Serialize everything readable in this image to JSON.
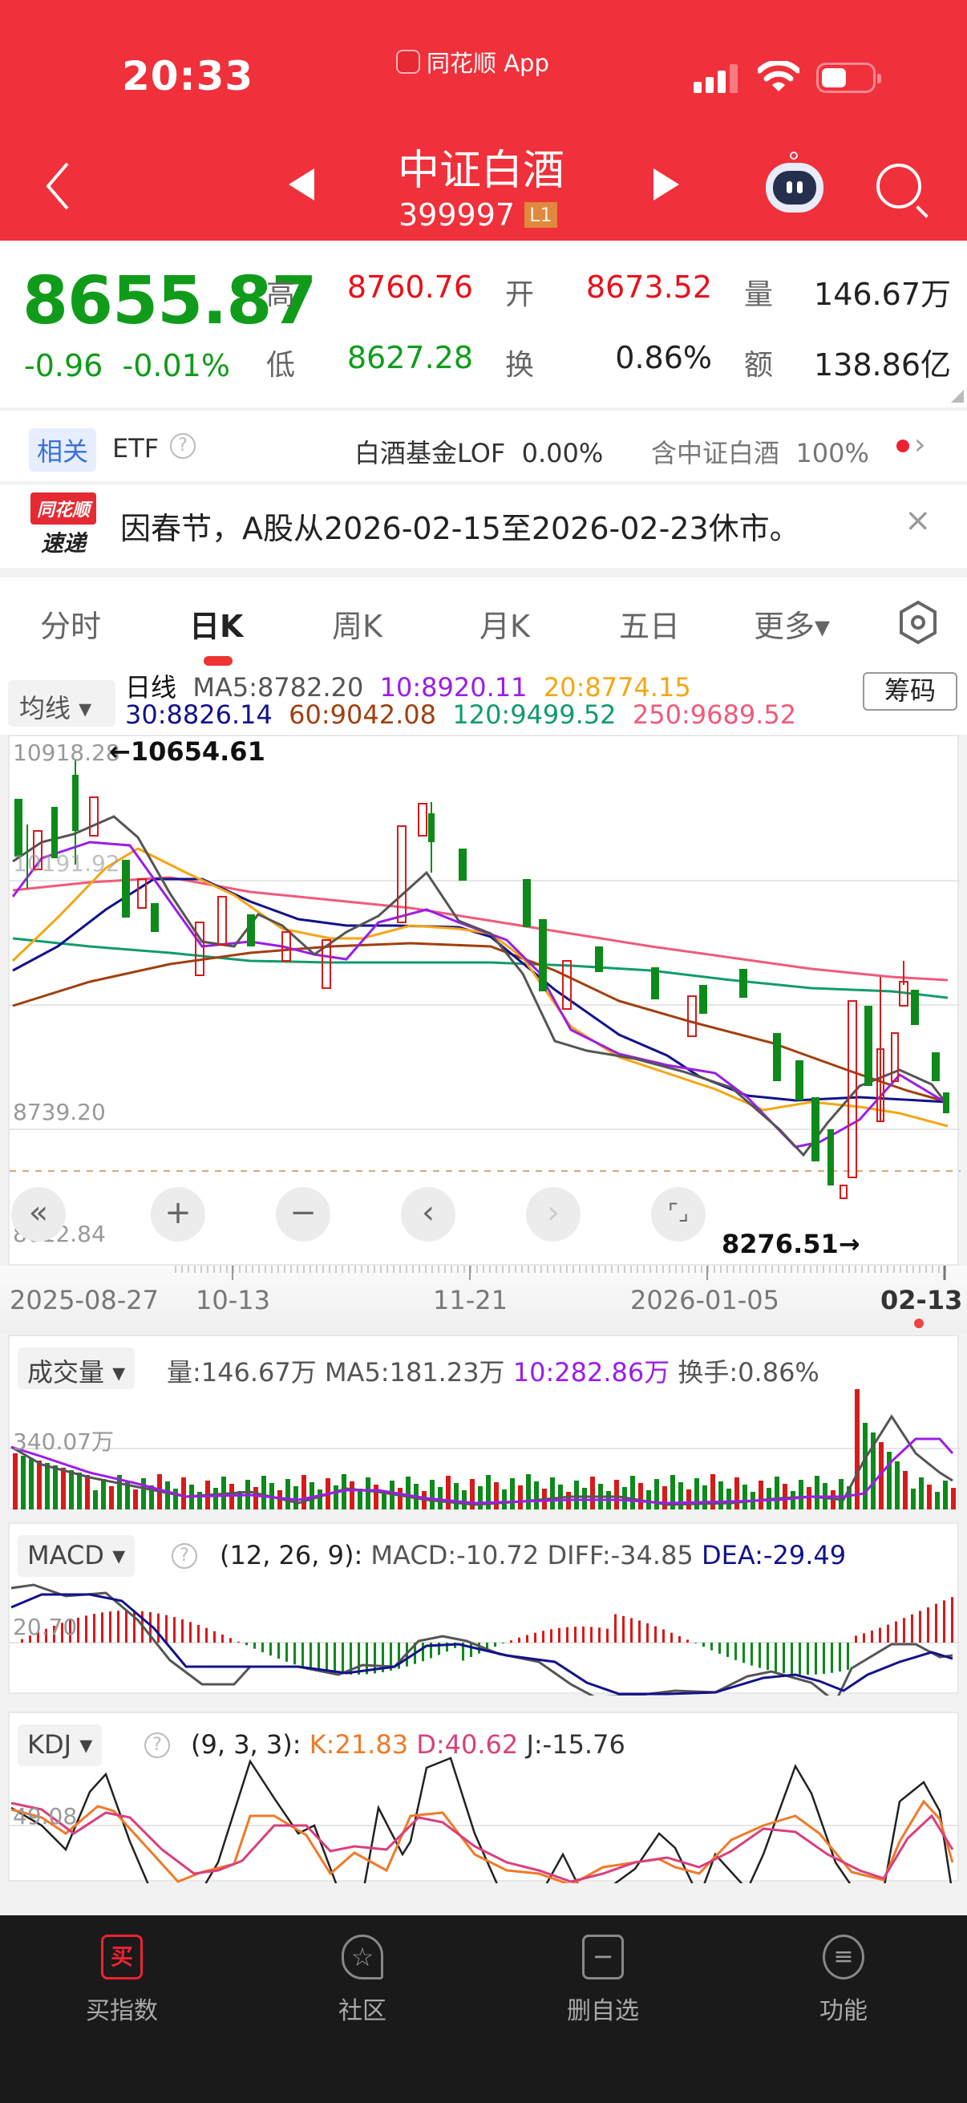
{
  "status_bar": {
    "time": "20:33",
    "app_label": "同花顺 App",
    "icons": [
      "signal-icon",
      "wifi-icon",
      "battery-icon"
    ]
  },
  "nav": {
    "title": "中证白酒",
    "code": "399997",
    "level_badge": "L1",
    "icons": [
      "back-icon",
      "prev-stock-icon",
      "next-stock-icon",
      "ai-robot-icon",
      "search-icon"
    ]
  },
  "quote": {
    "price": "8655.87",
    "change": "-0.96",
    "change_pct": "-0.01%",
    "high_label": "高",
    "high": "8760.76",
    "low_label": "低",
    "low": "8627.28",
    "open_label": "开",
    "open": "8673.52",
    "turnover_label": "换",
    "turnover": "0.86%",
    "volume_label": "量",
    "volume": "146.67万",
    "amount_label": "额",
    "amount": "138.86亿"
  },
  "etf": {
    "tag": "相关",
    "label": "ETF",
    "fund_name": "白酒基金LOF",
    "fund_change": "0.00%",
    "holding_label": "含中证白酒",
    "holding_pct": "100%"
  },
  "news": {
    "logo_top": "同花顺",
    "logo_bottom": "速递",
    "text": "因春节，A股从2026-02-15至2026-02-23休市。",
    "close": "×"
  },
  "tabs": {
    "items": [
      {
        "label": "分时",
        "active": false
      },
      {
        "label": "日K",
        "active": true
      },
      {
        "label": "周K",
        "active": false
      },
      {
        "label": "月K",
        "active": false
      },
      {
        "label": "五日",
        "active": false
      },
      {
        "label": "更多▾",
        "active": false
      }
    ],
    "settings_icon": "hexagon-settings-icon"
  },
  "legend": {
    "selector": "均线 ▾",
    "period": "日线",
    "ma5": "MA5:8782.20",
    "ma10": "10:8920.11",
    "ma20": "20:8774.15",
    "ma30": "30:8826.14",
    "ma60": "60:9042.08",
    "ma120": "120:9499.52",
    "ma250": "250:9689.52",
    "chips_button": "筹码",
    "colors": {
      "ma5": "#555555",
      "ma10": "#9b1de8",
      "ma20": "#f5a612",
      "ma30": "#12128c",
      "ma60": "#a0400e",
      "ma120": "#119b6e",
      "ma250": "#f05a7a"
    }
  },
  "main_chart": {
    "y_labels": [
      "10918.28",
      "10191.92",
      "8739.20",
      "8012.84"
    ],
    "max_marker": "←10654.61",
    "min_marker": "8276.51→",
    "controls": [
      "«",
      "+",
      "−",
      "‹",
      "›",
      "⌜⌟"
    ]
  },
  "date_axis": {
    "labels": [
      "2025-08-27",
      "10-13",
      "11-21",
      "2026-01-05",
      "02-13"
    ]
  },
  "volume_panel": {
    "selector": "成交量 ▾",
    "vol": "量:146.67万",
    "ma5": "MA5:181.23万",
    "ma10": "10:282.86万",
    "turnover": "换手:0.86%",
    "y_label": "340.07万"
  },
  "macd_panel": {
    "selector": "MACD ▾",
    "params": "(12, 26, 9):",
    "macd": "MACD:-10.72",
    "diff": "DIFF:-34.85",
    "dea": "DEA:-29.49",
    "y_label": "20.70"
  },
  "kdj_panel": {
    "selector": "KDJ ▾",
    "params": "(9, 3, 3):",
    "k": "K:21.83",
    "d": "D:40.62",
    "j": "J:-15.76",
    "y_label": "49.08"
  },
  "bottom_bar": {
    "items": [
      {
        "label": "买指数",
        "icon": "buy-icon",
        "glyph": "买"
      },
      {
        "label": "社区",
        "icon": "community-star-icon",
        "glyph": "☆"
      },
      {
        "label": "删自选",
        "icon": "remove-watchlist-icon",
        "glyph": "−"
      },
      {
        "label": "功能",
        "icon": "menu-icon",
        "glyph": "≡"
      }
    ]
  },
  "chart_data": {
    "type": "candlestick",
    "title": "中证白酒 399997 日K",
    "x_range": [
      "2025-08-27",
      "2026-02-13"
    ],
    "x_ticks": [
      "2025-08-27",
      "10-13",
      "11-21",
      "2026-01-05",
      "02-13"
    ],
    "y_ticks": [
      10918.28,
      10191.92,
      9465.56,
      8739.2,
      8012.84
    ],
    "ylim": [
      8012.84,
      10918.28
    ],
    "period_high": 10654.61,
    "period_low": 8276.51,
    "last_close": 8655.87,
    "moving_averages": [
      {
        "name": "MA5",
        "value": 8782.2
      },
      {
        "name": "MA10",
        "value": 8920.11
      },
      {
        "name": "MA20",
        "value": 8774.15
      },
      {
        "name": "MA30",
        "value": 8826.14
      },
      {
        "name": "MA60",
        "value": 9042.08
      },
      {
        "name": "MA120",
        "value": 9499.52
      },
      {
        "name": "MA250",
        "value": 9689.52
      }
    ],
    "volume": {
      "last": "146.67万",
      "ma5": "181.23万",
      "ma10": "282.86万",
      "ref_level": "340.07万"
    },
    "macd": {
      "params": [
        12,
        26,
        9
      ],
      "macd": -10.72,
      "diff": -34.85,
      "dea": -29.49,
      "ref_level": 20.7
    },
    "kdj": {
      "params": [
        9,
        3,
        3
      ],
      "k": 21.83,
      "d": 40.62,
      "j": -15.76,
      "ref_level": 49.08
    }
  }
}
